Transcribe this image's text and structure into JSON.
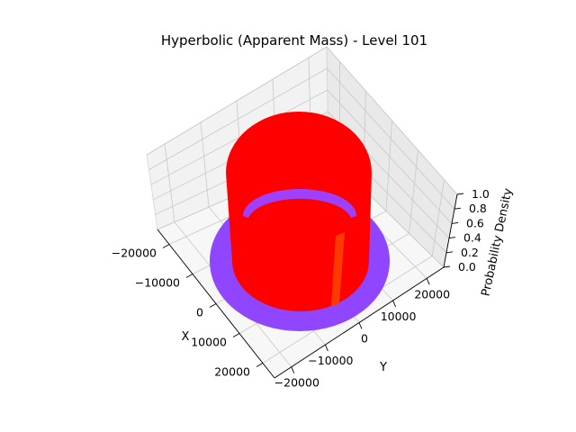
{
  "chart_data": {
    "type": "surface3d",
    "title": "Hyperbolic (Apparent Mass) - Level 101",
    "xlabel": "X",
    "ylabel": "Y",
    "zlabel": "Probability Density",
    "xlim": [
      -25000,
      25000
    ],
    "ylim": [
      -25000,
      25000
    ],
    "zlim": [
      0,
      1.0
    ],
    "x_ticks": [
      "−20000",
      "−10000",
      "0",
      "10000",
      "20000"
    ],
    "y_ticks": [
      "−20000",
      "−10000",
      "0",
      "10000",
      "20000"
    ],
    "z_ticks": [
      "0.0",
      "0.2",
      "0.4",
      "0.6",
      "0.8",
      "1.0"
    ],
    "surfaces": [
      {
        "shape": "annulus",
        "inner_radius": 14000,
        "outer_radius": 22000,
        "z": 0.0,
        "color": "#8a3cff"
      },
      {
        "shape": "cylinder",
        "radius": 17500,
        "z_range": [
          0.0,
          1.0
        ],
        "color": "#ff0000"
      }
    ],
    "grid": true,
    "colormap": "rainbow"
  }
}
